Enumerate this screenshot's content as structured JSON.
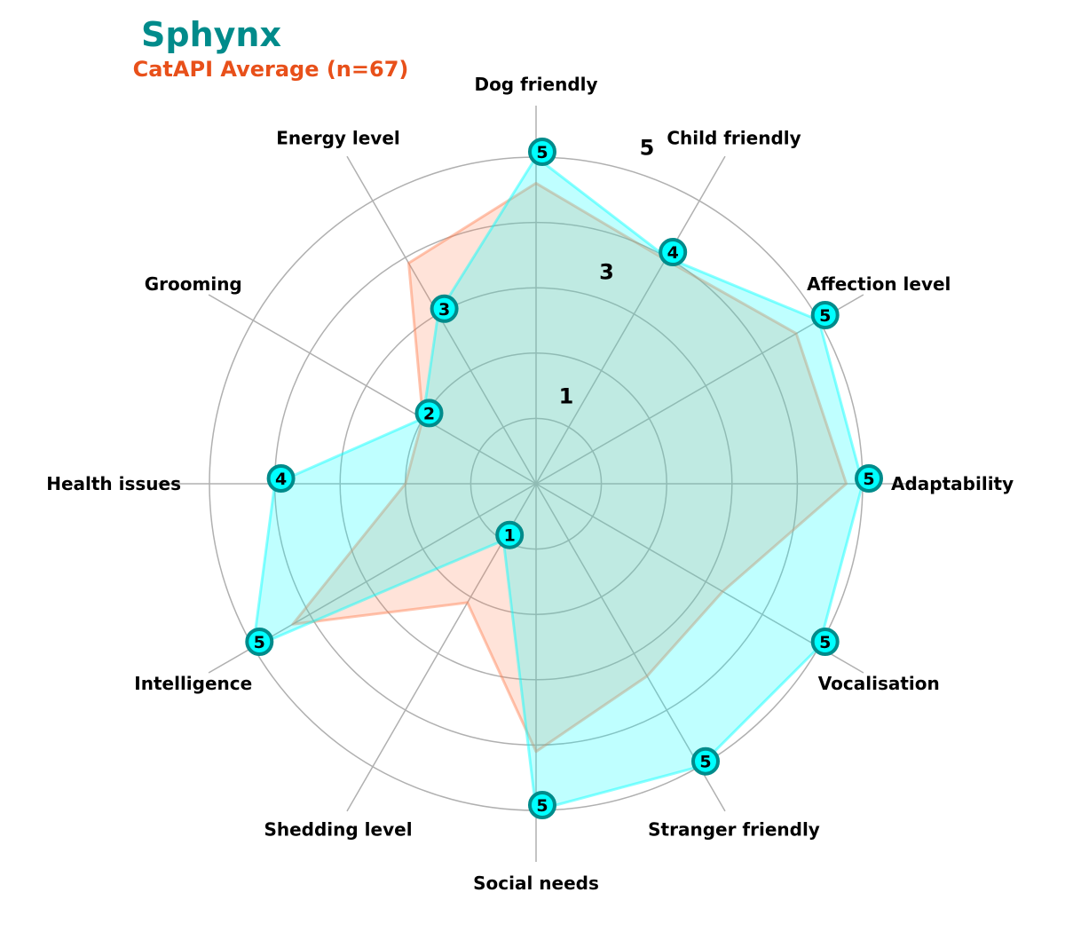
{
  "chart_data": {
    "type": "radar",
    "title": "Sphynx",
    "subtitle": "CatAPI Average (n=67)",
    "categories": [
      "Adaptability",
      "Affection level",
      "Child friendly",
      "Dog friendly",
      "Energy level",
      "Grooming",
      "Health issues",
      "Intelligence",
      "Shedding level",
      "Social needs",
      "Stranger friendly",
      "Vocalisation"
    ],
    "series": [
      {
        "name": "Sphynx",
        "values": [
          5,
          5,
          4,
          5,
          3,
          2,
          4,
          5,
          1,
          5,
          5,
          5
        ],
        "color": "#00ffff",
        "fill_opacity": 0.25
      },
      {
        "name": "CatAPI Average (n=67)",
        "values": [
          4.75,
          4.6,
          3.96,
          4.6,
          3.9,
          2.0,
          2.0,
          4.3,
          2.1,
          4.1,
          3.4,
          3.3
        ],
        "color": "#ff7f50",
        "fill_opacity": 0.22
      }
    ],
    "rlim": [
      0,
      5
    ],
    "ring_values": [
      1,
      2,
      3,
      4,
      5
    ],
    "ring_labels": [
      "1",
      "3",
      "5"
    ],
    "grid": true,
    "colors": {
      "title": "#008b8b",
      "subtitle": "#e8501a",
      "grid": "#b0b0b0",
      "marker_fill": "#00ffff",
      "marker_stroke": "#008b8b"
    }
  }
}
